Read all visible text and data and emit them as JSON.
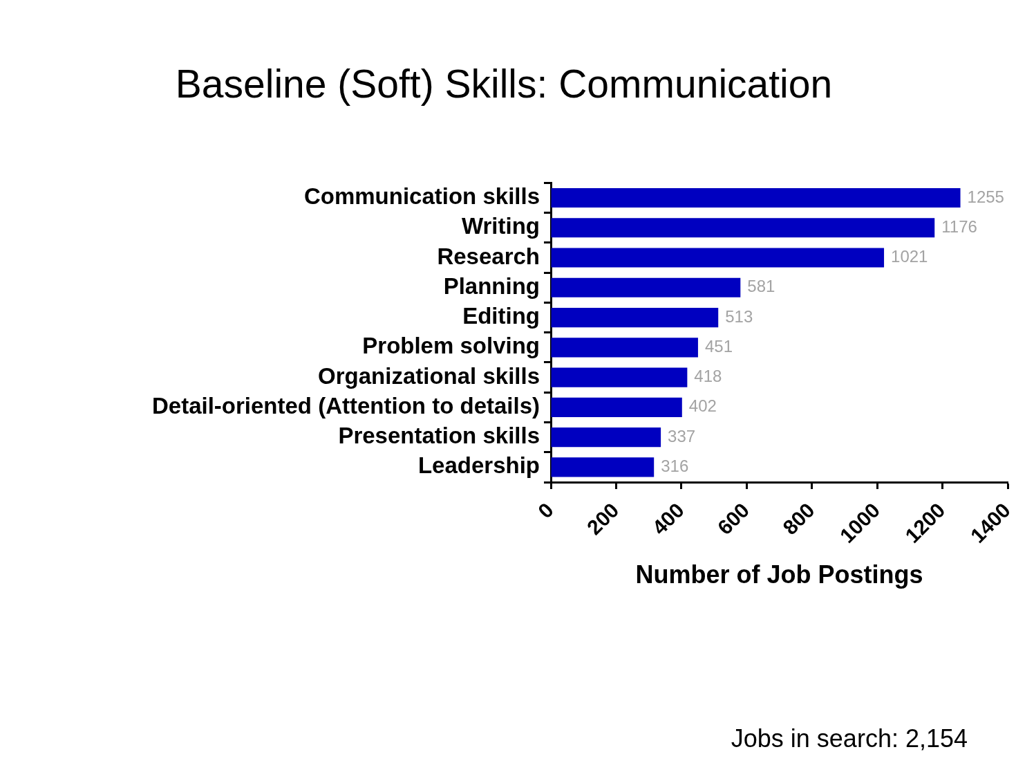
{
  "chart_data": {
    "type": "bar",
    "orientation": "horizontal",
    "title": "Baseline (Soft) Skills: Communication",
    "xlabel": "Number of Job Postings",
    "categories": [
      "Communication skills",
      "Writing",
      "Research",
      "Planning",
      "Editing",
      "Problem solving",
      "Organizational skills",
      "Detail-oriented (Attention to details)",
      "Presentation skills",
      "Leadership"
    ],
    "values": [
      1255,
      1176,
      1021,
      581,
      513,
      451,
      418,
      402,
      337,
      316
    ],
    "color": "#0000c0",
    "xlim": [
      0,
      1400
    ],
    "xticks": [
      0,
      200,
      400,
      600,
      800,
      1000,
      1200,
      1400
    ],
    "grid": false,
    "legend": false,
    "data_labels": true,
    "annotations": [
      "Jobs in search: 2,154"
    ]
  }
}
